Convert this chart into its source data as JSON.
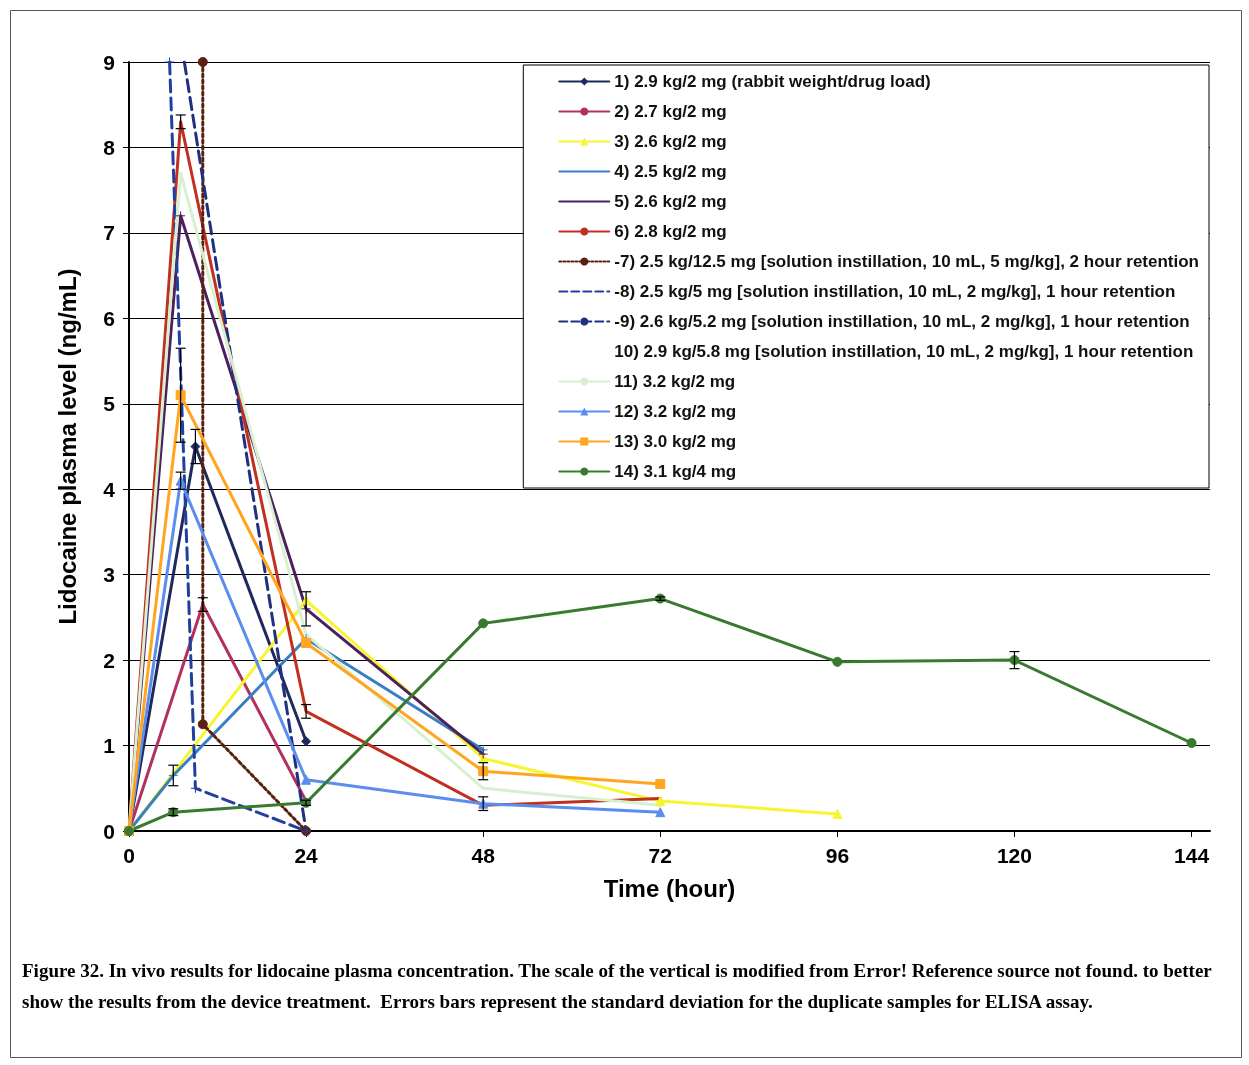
{
  "chart_data": {
    "type": "line",
    "xlabel": "Time (hour)",
    "ylabel": "Lidocaine plasma level (ng/mL)",
    "xlim": [
      0,
      146.5
    ],
    "xticks": [
      0,
      24,
      48,
      72,
      96,
      120,
      144
    ],
    "ylim": [
      0,
      9
    ],
    "yticks": [
      0,
      1,
      2,
      3,
      4,
      5,
      6,
      7,
      8,
      9
    ],
    "grid": "y",
    "legend": "top right",
    "annotations": [
      "Figure 32. In vivo results for lidocaine plasma concentration. The scale of the vertical is modified from Error! Reference source not found. to better show the results from the device treatment.  Errors bars represent the standard deviation for the duplicate samples for ELISA assay."
    ],
    "series": [
      {
        "name": "1) 2.9 kg/2 mg (rabbit weight/drug load)",
        "color": "#1f2a5c",
        "marker": "diamond",
        "x": [
          0,
          9,
          24
        ],
        "values": [
          0,
          4.5,
          1.05
        ],
        "errors": [
          null,
          0.2,
          null
        ]
      },
      {
        "name": "2) 2.7 kg/2 mg",
        "color": "#b03060",
        "marker": "none",
        "x": [
          0,
          10,
          24
        ],
        "values": [
          0,
          2.65,
          0.35
        ],
        "errors": [
          null,
          0.08,
          null
        ]
      },
      {
        "name": "3) 2.6 kg/2 mg",
        "color": "#f5f530",
        "marker": "triangle",
        "x": [
          0,
          24,
          48,
          72,
          96
        ],
        "values": [
          0,
          2.7,
          0.85,
          0.35,
          0.2
        ]
      },
      {
        "name": "4) 2.5 kg/2 mg",
        "color": "#3a7fc0",
        "marker": "cross",
        "x": [
          0,
          6,
          24,
          48
        ],
        "values": [
          0,
          0.65,
          2.25,
          0.95
        ],
        "errors": [
          null,
          0.12,
          null,
          null
        ]
      },
      {
        "name": "5) 2.6 kg/2 mg",
        "color": "#4a2060",
        "marker": "cross",
        "x": [
          0,
          7,
          24,
          48
        ],
        "values": [
          0,
          7.2,
          2.6,
          0.9
        ],
        "errors": [
          null,
          null,
          0.2,
          null
        ]
      },
      {
        "name": "6) 2.8 kg/2 mg",
        "color": "#c03020",
        "marker": "none",
        "x": [
          0,
          7,
          24,
          48,
          72
        ],
        "values": [
          0,
          8.3,
          1.4,
          0.3,
          0.38
        ],
        "errors": [
          null,
          0.08,
          0.08,
          null,
          null
        ]
      },
      {
        "name": "-7) 2.5 kg/12.5 mg [solution instillation, 10 mL, 5 mg/kg], 2 hour retention",
        "color": "#5a2010",
        "marker": "circle",
        "line_style": "dotted",
        "x": [
          10,
          10,
          24
        ],
        "values": [
          9,
          1.25,
          0
        ]
      },
      {
        "name": "-8) 2.5 kg/5 mg [solution instillation, 10 mL, 2 mg/kg], 1 hour retention",
        "color": "#2040a0",
        "marker": "cross",
        "line_style": "dashed",
        "x": [
          5.5,
          9,
          24
        ],
        "values": [
          9,
          0.5,
          0
        ]
      },
      {
        "name": "-9) 2.6 kg/5.2 mg [solution instillation, 10 mL, 2 mg/kg], 1 hour retention",
        "color": "#203080",
        "marker": "none",
        "line_style": "dashed",
        "x": [
          7.5,
          24
        ],
        "values": [
          9,
          0
        ]
      },
      {
        "name": "10) 2.9 kg/5.8 mg [solution instillation, 10 mL, 2 mg/kg], 1 hour retention",
        "marker": "none"
      },
      {
        "name": "11) 3.2 kg/2 mg",
        "color": "#d8f0d0",
        "marker": "none",
        "x": [
          0,
          7,
          24,
          48,
          72
        ],
        "values": [
          0,
          7.7,
          2.3,
          0.5,
          0.3
        ]
      },
      {
        "name": "12) 3.2 kg/2 mg",
        "color": "#5b8def",
        "marker": "triangle",
        "x": [
          0,
          7,
          24,
          48,
          72
        ],
        "values": [
          0,
          4.1,
          0.6,
          0.32,
          0.22
        ],
        "errors": [
          null,
          0.1,
          null,
          0.08,
          null
        ]
      },
      {
        "name": "13) 3.0 kg/2 mg",
        "color": "#ffa520",
        "marker": "square",
        "x": [
          0,
          7,
          24,
          48,
          72
        ],
        "values": [
          0,
          5.1,
          2.2,
          0.7,
          0.55
        ],
        "errors": [
          null,
          0.55,
          null,
          0.1,
          null
        ]
      },
      {
        "name": "14) 3.1 kg/4 mg",
        "color": "#3a7a30",
        "marker": "circle",
        "x": [
          0,
          6,
          24,
          48,
          72,
          96,
          120,
          144
        ],
        "values": [
          0,
          0.22,
          0.33,
          2.43,
          2.72,
          1.98,
          2.0,
          1.03
        ],
        "errors": [
          null,
          0.04,
          0.03,
          null,
          0.02,
          null,
          0.1,
          null
        ]
      }
    ]
  }
}
